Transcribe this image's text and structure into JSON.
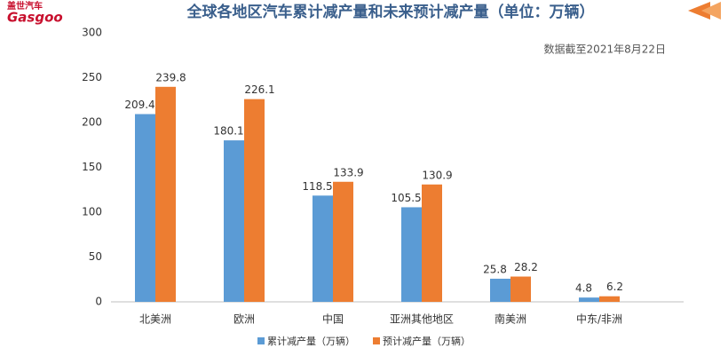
{
  "logo": {
    "cn": "盖世汽车",
    "en": "Gasgoo"
  },
  "chart_data": {
    "type": "bar",
    "title": "全球各地区汽车累计减产量和未来预计减产量（单位：万辆）",
    "subtitle": "数据截至2021年8月22日",
    "categories": [
      "北美洲",
      "欧洲",
      "中国",
      "亚洲其他地区",
      "南美洲",
      "中东/非洲"
    ],
    "series": [
      {
        "name": "累计减产量（万辆）",
        "color": "#5b9bd5",
        "values": [
          209.4,
          180.1,
          118.5,
          105.5,
          25.8,
          4.8
        ]
      },
      {
        "name": "预计减产量（万辆）",
        "color": "#ed7d31",
        "values": [
          239.8,
          226.1,
          133.9,
          130.9,
          28.2,
          6.2
        ]
      }
    ],
    "ylim": [
      0,
      300
    ],
    "yticks": [
      0,
      50,
      100,
      150,
      200,
      250,
      300
    ],
    "grid": false,
    "legend": "bottom"
  }
}
